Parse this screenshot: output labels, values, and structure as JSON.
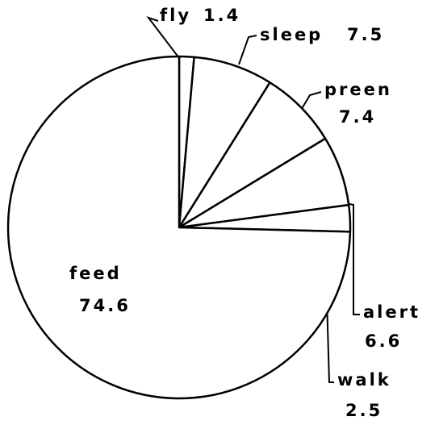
{
  "chart_data": {
    "type": "pie",
    "categories": [
      "fly",
      "sleep",
      "preen",
      "alert",
      "walk",
      "feed"
    ],
    "values": [
      1.4,
      7.5,
      7.4,
      6.6,
      2.5,
      74.6
    ]
  }
}
